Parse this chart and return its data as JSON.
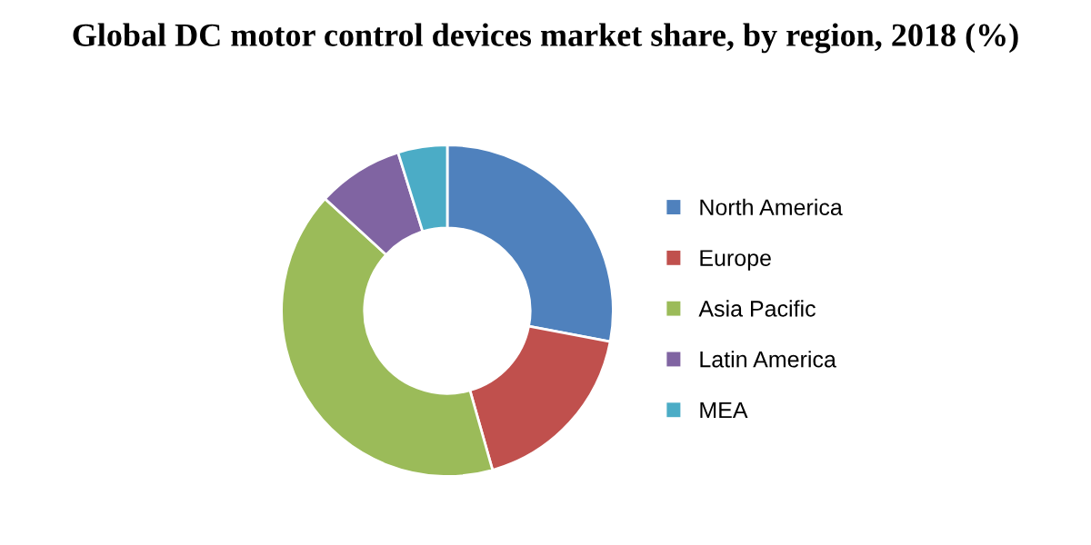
{
  "chart_data": {
    "type": "donut",
    "title": "Global DC motor control devices market share, by region, 2018 (%)",
    "categories": [
      "North America",
      "Europe",
      "Asia Pacific",
      "Latin America",
      "MEA"
    ],
    "values": [
      28,
      17.6,
      41.2,
      8.4,
      4.8
    ],
    "colors": [
      "#4f81bd",
      "#c0504d",
      "#9bbb59",
      "#8064a2",
      "#4bacc6"
    ],
    "legend": "right"
  }
}
